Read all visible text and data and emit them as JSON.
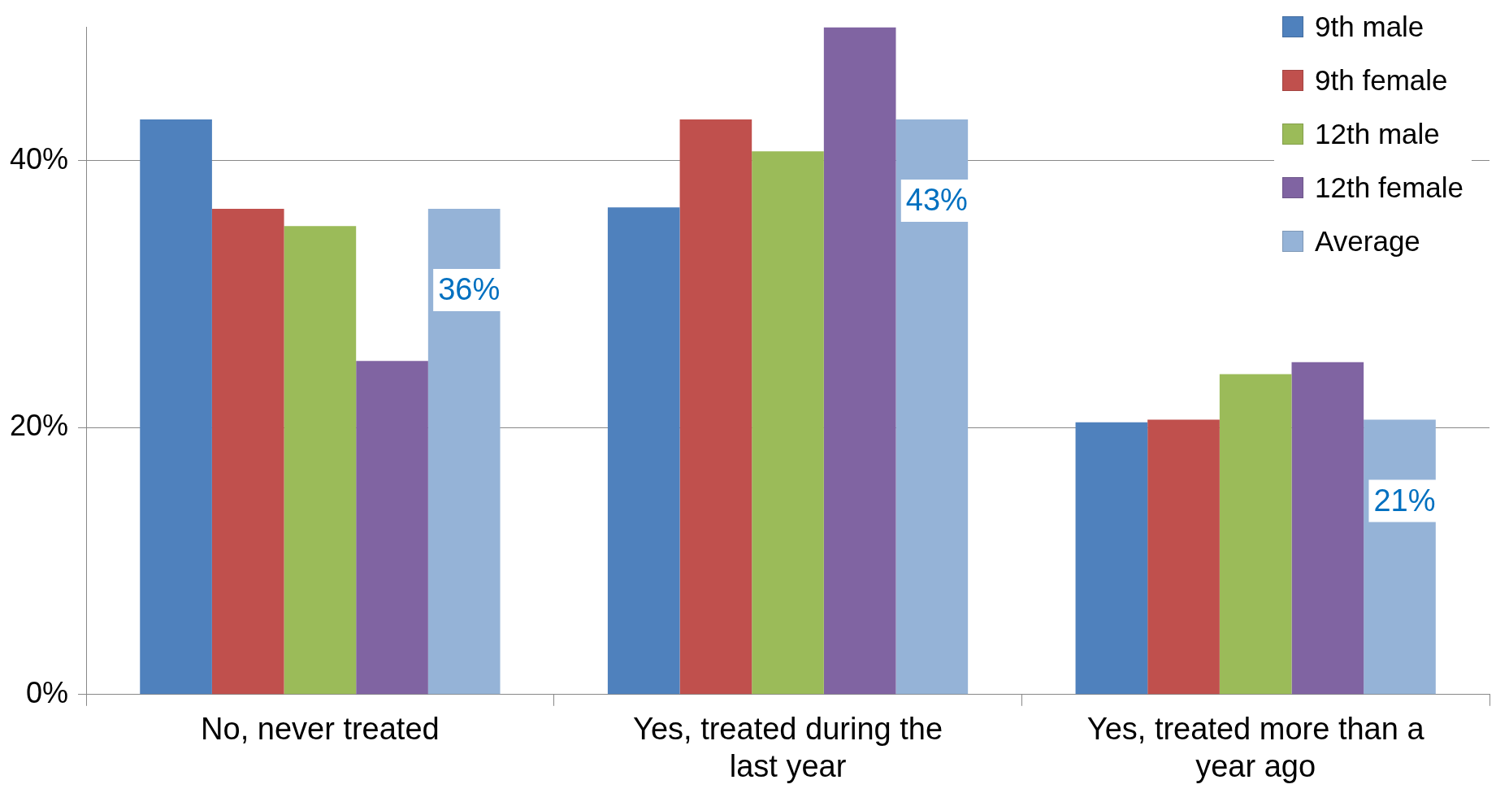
{
  "chart_data": {
    "type": "bar",
    "categories": [
      "No, never treated",
      "Yes, treated during the last year",
      "Yes, treated more than a year ago"
    ],
    "series": [
      {
        "name": "9th male",
        "color": "#4f81bd",
        "values": [
          43.1,
          36.5,
          20.4
        ]
      },
      {
        "name": "9th female",
        "color": "#c0504d",
        "values": [
          36.4,
          43.1,
          20.6
        ]
      },
      {
        "name": "12th male",
        "color": "#9bbb59",
        "values": [
          35.1,
          40.7,
          24.0
        ]
      },
      {
        "name": "12th female",
        "color": "#8064a2",
        "values": [
          25.0,
          50.0,
          24.9
        ]
      },
      {
        "name": "Average",
        "color": "#95b3d7",
        "values": [
          36.4,
          43.1,
          20.6
        ],
        "value_labels": [
          "36%",
          "43%",
          "21%"
        ]
      }
    ],
    "ylim": [
      0,
      50
    ],
    "yticks": [
      {
        "value": 0,
        "label": "0%"
      },
      {
        "value": 20,
        "label": "20%"
      },
      {
        "value": 40,
        "label": "40%"
      }
    ],
    "grid": "y",
    "legend": "top right"
  }
}
